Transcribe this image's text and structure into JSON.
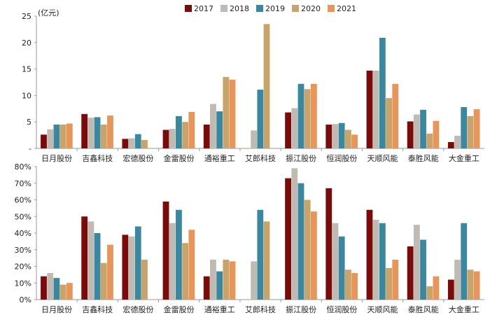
{
  "chart_data": [
    {
      "type": "bar",
      "unit_label": "(亿元)",
      "ylim": [
        0,
        25
      ],
      "yticks": [
        {
          "value": 25,
          "label": "25"
        },
        {
          "value": 20,
          "label": "20"
        },
        {
          "value": 15,
          "label": "15"
        },
        {
          "value": 10,
          "label": "10"
        },
        {
          "value": 5,
          "label": "5"
        },
        {
          "value": 0,
          "label": "-"
        }
      ],
      "categories": [
        "日月股份",
        "吉鑫科技",
        "宏德股份",
        "金雷股份",
        "通裕重工",
        "艾郎科技",
        "振江股份",
        "恒润股份",
        "天顺风能",
        "泰胜风能",
        "大金重工"
      ],
      "series": [
        {
          "name": "2017",
          "color": "#7B0A0A",
          "values": [
            2.6,
            6.5,
            1.8,
            3.5,
            4.5,
            null,
            6.8,
            4.5,
            14.7,
            5.1,
            1.2
          ]
        },
        {
          "name": "2018",
          "color": "#BFBBB3",
          "values": [
            3.6,
            5.8,
            1.9,
            3.7,
            8.4,
            3.4,
            7.6,
            4.6,
            14.7,
            6.4,
            2.4
          ]
        },
        {
          "name": "2019",
          "color": "#3A87A0",
          "values": [
            4.5,
            5.9,
            2.7,
            6.1,
            7.0,
            11.1,
            12.2,
            4.8,
            20.9,
            7.3,
            7.8
          ]
        },
        {
          "name": "2020",
          "color": "#C8A36A",
          "values": [
            4.5,
            4.5,
            1.6,
            5.0,
            13.5,
            23.5,
            11.2,
            3.5,
            9.5,
            2.8,
            6.1
          ]
        },
        {
          "name": "2021",
          "color": "#E8955A",
          "values": [
            4.7,
            6.2,
            null,
            6.9,
            13.0,
            null,
            12.2,
            2.6,
            12.2,
            5.2,
            7.4
          ]
        }
      ]
    },
    {
      "type": "bar",
      "ylim": [
        0,
        80
      ],
      "yticks": [
        {
          "value": 80,
          "label": "80%"
        },
        {
          "value": 70,
          "label": "70%"
        },
        {
          "value": 60,
          "label": "60%"
        },
        {
          "value": 50,
          "label": "50%"
        },
        {
          "value": 40,
          "label": "40%"
        },
        {
          "value": 30,
          "label": "30%"
        },
        {
          "value": 20,
          "label": "20%"
        },
        {
          "value": 10,
          "label": "10%"
        },
        {
          "value": 0,
          "label": "0%"
        }
      ],
      "categories": [
        "日月股份",
        "吉鑫科技",
        "宏德股份",
        "金雷股份",
        "通裕重工",
        "艾郎科技",
        "振江股份",
        "恒润股份",
        "天顺风能",
        "泰胜风能",
        "大金重工"
      ],
      "series": [
        {
          "name": "2017",
          "color": "#7B0A0A",
          "values": [
            14,
            50,
            39,
            59,
            14,
            null,
            73,
            67,
            54,
            32,
            12
          ]
        },
        {
          "name": "2018",
          "color": "#BFBBB3",
          "values": [
            16,
            47,
            38,
            46,
            24,
            23,
            79,
            46,
            48,
            45,
            24
          ]
        },
        {
          "name": "2019",
          "color": "#3A87A0",
          "values": [
            13,
            40,
            44,
            54,
            17,
            54,
            70,
            38,
            46,
            36,
            46
          ]
        },
        {
          "name": "2020",
          "color": "#C8A36A",
          "values": [
            9,
            22,
            24,
            34,
            24,
            47,
            60,
            18,
            19,
            8,
            18
          ]
        },
        {
          "name": "2021",
          "color": "#E8955A",
          "values": [
            10,
            33,
            null,
            42,
            23,
            null,
            53,
            16,
            24,
            14,
            17
          ]
        }
      ]
    }
  ],
  "legend": [
    {
      "name": "2017",
      "color": "#7B0A0A"
    },
    {
      "name": "2018",
      "color": "#BFBBB3"
    },
    {
      "name": "2019",
      "color": "#3A87A0"
    },
    {
      "name": "2020",
      "color": "#C8A36A"
    },
    {
      "name": "2021",
      "color": "#E8955A"
    }
  ]
}
